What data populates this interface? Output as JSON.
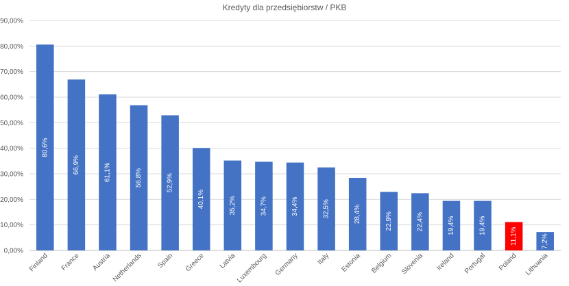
{
  "chart_data": {
    "type": "bar",
    "title": "Kredyty dla przedsiębiorstw / PKB",
    "xlabel": "",
    "ylabel": "",
    "ylim": [
      0,
      90
    ],
    "yticks": [
      "0,00%",
      "10,00%",
      "20,00%",
      "30,00%",
      "40,00%",
      "50,00%",
      "60,00%",
      "70,00%",
      "80,00%",
      "90,00%"
    ],
    "categories": [
      "Finland",
      "France",
      "Austria",
      "Netherlands",
      "Spain",
      "Greece",
      "Latvia",
      "Luxembourg",
      "Germany",
      "Italy",
      "Estonia",
      "Belgium",
      "Slovenia",
      "Ireland",
      "Portugal",
      "Poland",
      "Lithuania"
    ],
    "values": [
      80.6,
      66.9,
      61.1,
      56.8,
      52.9,
      40.1,
      35.2,
      34.7,
      34.4,
      32.5,
      28.4,
      22.9,
      22.4,
      19.4,
      19.4,
      11.1,
      7.2
    ],
    "data_labels": [
      "80,6%",
      "66,9%",
      "61,1%",
      "56,8%",
      "52,9%",
      "40,1%",
      "35,2%",
      "34,7%",
      "34,4%",
      "32,5%",
      "28,4%",
      "22,9%",
      "22,4%",
      "19,4%",
      "19,4%",
      "11,1%",
      "7,2%"
    ],
    "bar_colors": [
      "#4472C4",
      "#4472C4",
      "#4472C4",
      "#4472C4",
      "#4472C4",
      "#4472C4",
      "#4472C4",
      "#4472C4",
      "#4472C4",
      "#4472C4",
      "#4472C4",
      "#4472C4",
      "#4472C4",
      "#4472C4",
      "#4472C4",
      "#FF0000",
      "#4472C4"
    ],
    "grid": true,
    "legend": "none"
  }
}
